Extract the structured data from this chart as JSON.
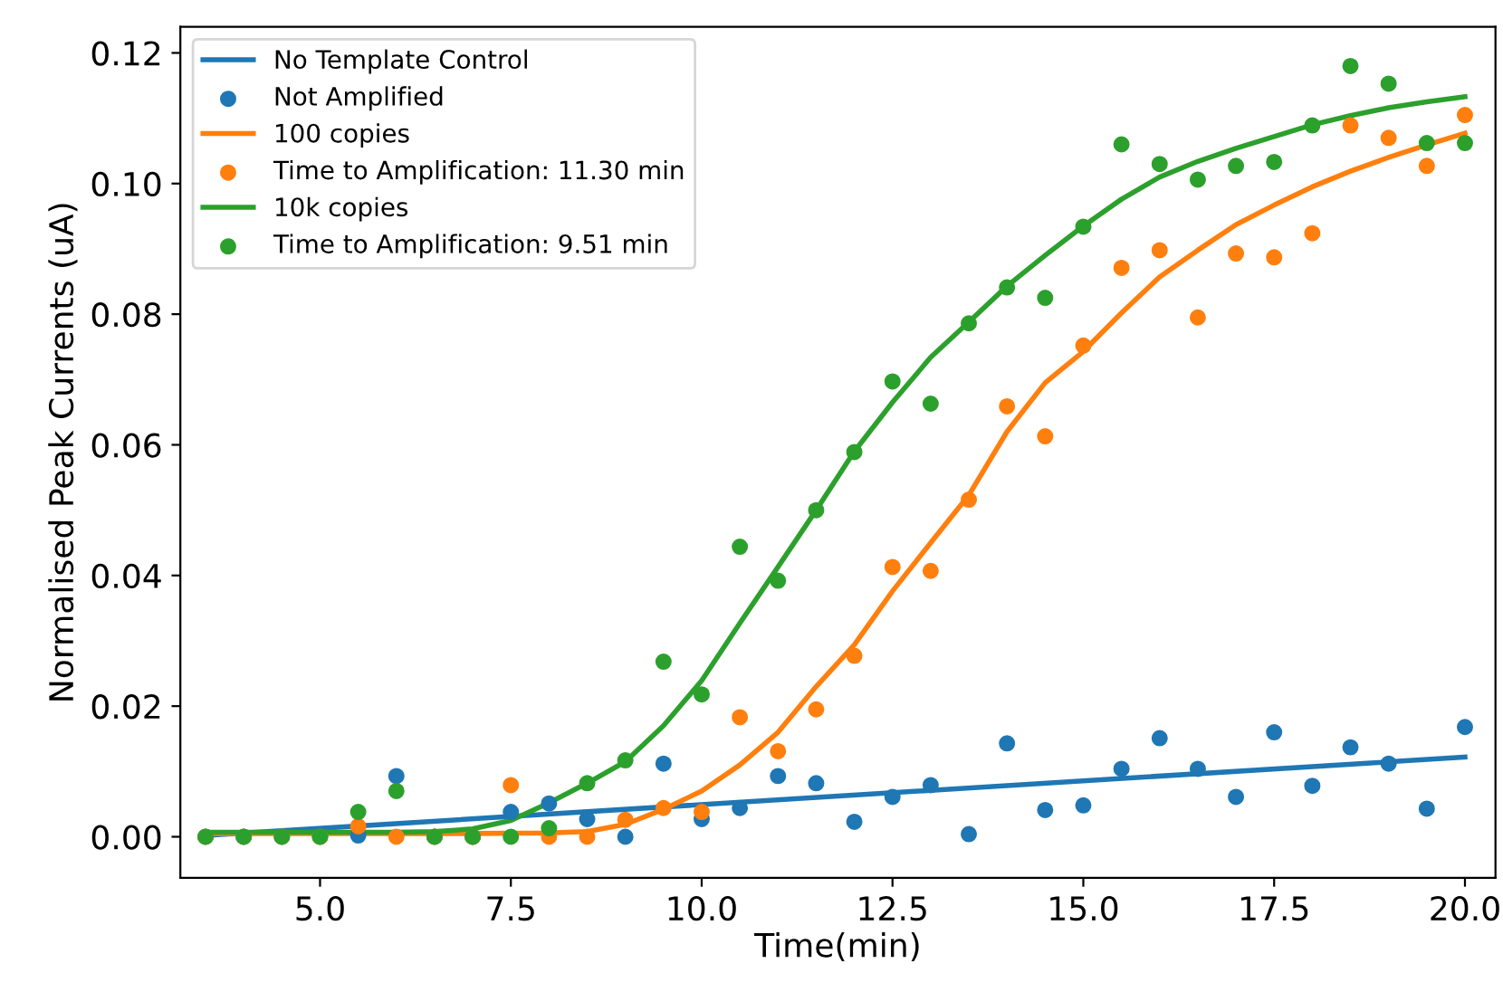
{
  "chart_data": {
    "type": "scatter",
    "xlabel": "Time(min)",
    "ylabel": "Normalised Peak Currents (uA)",
    "xlim": [
      3.17,
      20.4
    ],
    "ylim": [
      -0.0063,
      0.124
    ],
    "xticks": [
      {
        "value": 5,
        "label": "5.0"
      },
      {
        "value": 7.5,
        "label": "7.5"
      },
      {
        "value": 10,
        "label": "10.0"
      },
      {
        "value": 12.5,
        "label": "12.5"
      },
      {
        "value": 15,
        "label": "15.0"
      },
      {
        "value": 17.5,
        "label": "17.5"
      },
      {
        "value": 20,
        "label": "20.0"
      }
    ],
    "yticks": [
      {
        "value": 0,
        "label": "0.00"
      },
      {
        "value": 0.02,
        "label": "0.02"
      },
      {
        "value": 0.04,
        "label": "0.04"
      },
      {
        "value": 0.06,
        "label": "0.06"
      },
      {
        "value": 0.08,
        "label": "0.08"
      },
      {
        "value": 0.1,
        "label": "0.10"
      },
      {
        "value": 0.12,
        "label": "0.12"
      }
    ],
    "grid": false,
    "legend": "top left",
    "x": [
      3.5,
      4.0,
      4.5,
      5.0,
      5.5,
      6.0,
      6.5,
      7.0,
      7.5,
      8.0,
      8.5,
      9.0,
      9.5,
      10.0,
      10.5,
      11.0,
      11.5,
      12.0,
      12.5,
      13.0,
      13.5,
      14.0,
      14.5,
      15.0,
      15.5,
      16.0,
      16.5,
      17.0,
      17.5,
      18.0,
      18.5,
      19.0,
      19.5,
      20.0
    ],
    "series": [
      {
        "name": "No Template Control",
        "type": "line",
        "marker": "none",
        "line_style": "solid",
        "color": "#1f77b4",
        "x": [
          3.5,
          20.0
        ],
        "values": [
          0.0002,
          0.0122
        ]
      },
      {
        "name": "Not Amplified",
        "marker": "circle",
        "color": "#1f77b4",
        "values": [
          0,
          0,
          0,
          0,
          0.0002,
          0.0093,
          0,
          0,
          0.0038,
          0.0051,
          0.0027,
          0,
          0.0112,
          0.0027,
          0.0044,
          0.0093,
          0.0082,
          0.0023,
          0.0061,
          0.0079,
          0.0004,
          0.0143,
          0.0041,
          0.0048,
          0.0104,
          0.0151,
          0.0104,
          0.0061,
          0.016,
          0.0078,
          0.0137,
          0.0112,
          0.0043,
          0.0168
        ]
      },
      {
        "name": "100 copies",
        "type": "line",
        "marker": "none",
        "line_style": "solid",
        "color": "#ff7f0e",
        "x": [
          3.5,
          5.0,
          6.0,
          7.0,
          8.0,
          8.5,
          9.0,
          9.5,
          10.0,
          10.5,
          11.0,
          11.5,
          12.0,
          12.5,
          13.0,
          13.5,
          14.0,
          14.5,
          15.0,
          15.5,
          16.0,
          16.5,
          17.0,
          17.5,
          18.0,
          18.5,
          19.0,
          19.5,
          20.0
        ],
        "values": [
          0.0005,
          0.0005,
          0.0005,
          0.0005,
          0.0006,
          0.0008,
          0.0019,
          0.0042,
          0.007,
          0.011,
          0.016,
          0.023,
          0.0294,
          0.0376,
          0.045,
          0.0523,
          0.062,
          0.0695,
          0.0743,
          0.0802,
          0.0857,
          0.0898,
          0.0937,
          0.0967,
          0.0995,
          0.1019,
          0.104,
          0.1059,
          0.1077
        ]
      },
      {
        "name": "Time to Amplification: 11.30 min",
        "marker": "circle",
        "color": "#ff7f0e",
        "values": [
          0,
          0,
          0,
          0,
          0.0016,
          0,
          0,
          0,
          0.0079,
          0,
          0,
          0.0026,
          0.0044,
          0.0038,
          0.0183,
          0.0131,
          0.0195,
          0.0277,
          0.0413,
          0.0407,
          0.0516,
          0.0659,
          0.0613,
          0.0752,
          0.0871,
          0.0898,
          0.0795,
          0.0893,
          0.0887,
          0.0924,
          0.1089,
          0.107,
          0.1027,
          0.1105
        ]
      },
      {
        "name": "10k copies",
        "type": "line",
        "marker": "none",
        "line_style": "solid",
        "color": "#2ca02c",
        "x": [
          3.5,
          5.0,
          6.0,
          6.5,
          7.0,
          7.5,
          8.0,
          8.5,
          9.0,
          9.5,
          10.0,
          10.5,
          11.0,
          11.5,
          12.0,
          12.5,
          13.0,
          13.5,
          14.0,
          14.5,
          15.0,
          15.5,
          16.0,
          16.5,
          17.0,
          17.5,
          18.0,
          18.5,
          19.0,
          19.5,
          20.0
        ],
        "values": [
          0.0007,
          0.0007,
          0.0007,
          0.0008,
          0.0012,
          0.0025,
          0.0052,
          0.0082,
          0.0115,
          0.017,
          0.0239,
          0.0327,
          0.0413,
          0.05,
          0.059,
          0.0665,
          0.0734,
          0.0788,
          0.0843,
          0.089,
          0.0935,
          0.0976,
          0.101,
          0.1034,
          0.1054,
          0.1072,
          0.109,
          0.1104,
          0.1116,
          0.1125,
          0.1133
        ]
      },
      {
        "name": "Time to Amplification: 9.51 min",
        "marker": "circle",
        "color": "#2ca02c",
        "values": [
          0,
          0,
          0,
          0,
          0.0038,
          0.007,
          0,
          0,
          0,
          0.0013,
          0.0082,
          0.0117,
          0.0268,
          0.0218,
          0.0444,
          0.0392,
          0.05,
          0.0589,
          0.0697,
          0.0663,
          0.0786,
          0.0841,
          0.0825,
          0.0934,
          0.106,
          0.103,
          0.1006,
          0.1027,
          0.1033,
          0.1089,
          0.118,
          0.1153,
          0.1062,
          0.1062
        ]
      }
    ]
  }
}
